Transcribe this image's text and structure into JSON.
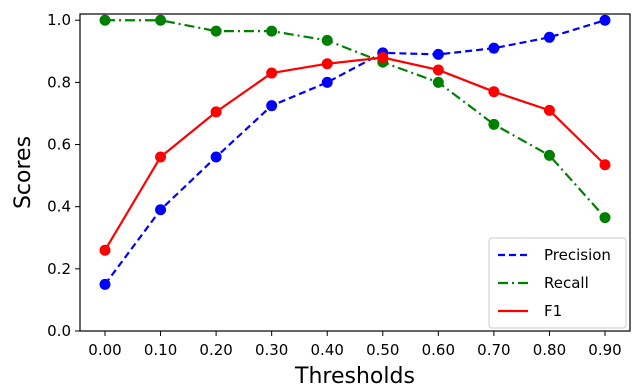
{
  "chart_data": {
    "type": "line",
    "xlabel": "Thresholds",
    "ylabel": "Scores",
    "x": [
      0.0,
      0.1,
      0.2,
      0.3,
      0.4,
      0.5,
      0.6,
      0.7,
      0.8,
      0.9
    ],
    "x_tick_labels": [
      "0.00",
      "0.10",
      "0.20",
      "0.30",
      "0.40",
      "0.50",
      "0.60",
      "0.70",
      "0.80",
      "0.90"
    ],
    "y_ticks": [
      0.0,
      0.2,
      0.4,
      0.6,
      0.8,
      1.0
    ],
    "y_tick_labels": [
      "0.0",
      "0.2",
      "0.4",
      "0.6",
      "0.8",
      "1.0"
    ],
    "ylim": [
      0.0,
      1.02
    ],
    "xlim": [
      -0.045,
      0.945
    ],
    "grid": false,
    "legend_position": "bottom-right",
    "series": [
      {
        "name": "Precision",
        "color": "#0000ff",
        "linestyle": "dashed",
        "values": [
          0.15,
          0.39,
          0.56,
          0.725,
          0.8,
          0.895,
          0.89,
          0.91,
          0.945,
          1.0
        ]
      },
      {
        "name": "Recall",
        "color": "#008000",
        "linestyle": "dashdot",
        "values": [
          1.0,
          1.0,
          0.965,
          0.965,
          0.935,
          0.865,
          0.8,
          0.665,
          0.565,
          0.365
        ]
      },
      {
        "name": "F1",
        "color": "#ff0000",
        "linestyle": "solid",
        "values": [
          0.26,
          0.56,
          0.705,
          0.83,
          0.86,
          0.88,
          0.84,
          0.77,
          0.71,
          0.535
        ]
      }
    ]
  }
}
